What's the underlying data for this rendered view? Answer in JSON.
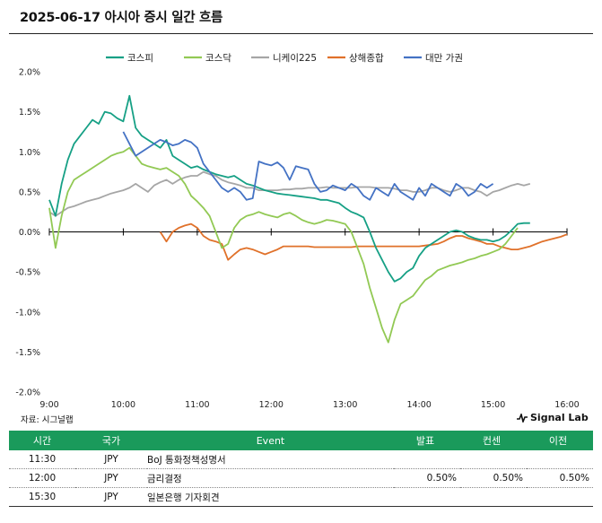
{
  "title": "2025-06-17 아시아 증시 일간 흐름",
  "source": "자료: 시그널랩",
  "brand": "Signal Lab",
  "colors": {
    "kospi": "#16a085",
    "kosdaq": "#92c954",
    "nikkei": "#a6a6a6",
    "shanghai": "#e0712a",
    "taiwan": "#4472c4",
    "header_bg": "#1a9a5b"
  },
  "chart_data": {
    "type": "line",
    "yunit": "%",
    "ylim": [
      -2.0,
      2.0
    ],
    "yticks": [
      "2.0%",
      "1.5%",
      "1.0%",
      "0.5%",
      "0.0%",
      "-0.5%",
      "-1.0%",
      "-1.5%",
      "-2.0%"
    ],
    "xticks": [
      "9:00",
      "10:00",
      "11:00",
      "12:00",
      "13:00",
      "14:00",
      "15:00",
      "16:00"
    ],
    "legend_position": "top",
    "grid": false,
    "series": [
      {
        "name": "코스피",
        "key": "kospi",
        "x": [
          "9:00",
          "9:05",
          "9:10",
          "9:15",
          "9:20",
          "9:25",
          "9:30",
          "9:35",
          "9:40",
          "9:45",
          "9:50",
          "9:55",
          "10:00",
          "10:05",
          "10:10",
          "10:15",
          "10:20",
          "10:25",
          "10:30",
          "10:35",
          "10:40",
          "10:45",
          "10:50",
          "10:55",
          "11:00",
          "11:05",
          "11:10",
          "11:15",
          "11:20",
          "11:25",
          "11:30",
          "11:35",
          "11:40",
          "11:45",
          "11:50",
          "11:55",
          "12:00",
          "12:05",
          "12:10",
          "12:15",
          "12:20",
          "12:25",
          "12:30",
          "12:35",
          "12:40",
          "12:45",
          "12:50",
          "12:55",
          "13:00",
          "13:05",
          "13:10",
          "13:15",
          "13:20",
          "13:25",
          "13:30",
          "13:35",
          "13:40",
          "13:45",
          "13:50",
          "13:55",
          "14:00",
          "14:05",
          "14:10",
          "14:15",
          "14:20",
          "14:25",
          "14:30",
          "14:35",
          "14:40",
          "14:45",
          "14:50",
          "14:55",
          "15:00",
          "15:05",
          "15:10",
          "15:15",
          "15:20",
          "15:25",
          "15:30"
        ],
        "y": [
          0.4,
          0.2,
          0.6,
          0.9,
          1.1,
          1.2,
          1.3,
          1.4,
          1.35,
          1.5,
          1.48,
          1.42,
          1.38,
          1.7,
          1.3,
          1.2,
          1.15,
          1.1,
          1.05,
          1.15,
          0.95,
          0.9,
          0.85,
          0.8,
          0.82,
          0.78,
          0.75,
          0.72,
          0.7,
          0.68,
          0.7,
          0.65,
          0.6,
          0.58,
          0.55,
          0.52,
          0.5,
          0.48,
          0.47,
          0.46,
          0.45,
          0.44,
          0.43,
          0.42,
          0.4,
          0.4,
          0.38,
          0.36,
          0.3,
          0.25,
          0.22,
          0.18,
          0.0,
          -0.2,
          -0.35,
          -0.5,
          -0.62,
          -0.58,
          -0.5,
          -0.45,
          -0.3,
          -0.2,
          -0.15,
          -0.1,
          -0.05,
          0.0,
          0.02,
          0.0,
          -0.05,
          -0.08,
          -0.1,
          -0.1,
          -0.12,
          -0.1,
          -0.05,
          0.02,
          0.1,
          0.11,
          0.11
        ]
      },
      {
        "name": "코스닥",
        "key": "kosdaq",
        "x": [
          "9:00",
          "9:05",
          "9:10",
          "9:15",
          "9:20",
          "9:25",
          "9:30",
          "9:35",
          "9:40",
          "9:45",
          "9:50",
          "9:55",
          "10:00",
          "10:05",
          "10:10",
          "10:15",
          "10:20",
          "10:25",
          "10:30",
          "10:35",
          "10:40",
          "10:45",
          "10:50",
          "10:55",
          "11:00",
          "11:05",
          "11:10",
          "11:15",
          "11:20",
          "11:25",
          "11:30",
          "11:35",
          "11:40",
          "11:45",
          "11:50",
          "11:55",
          "12:00",
          "12:05",
          "12:10",
          "12:15",
          "12:20",
          "12:25",
          "12:30",
          "12:35",
          "12:40",
          "12:45",
          "12:50",
          "12:55",
          "13:00",
          "13:05",
          "13:10",
          "13:15",
          "13:20",
          "13:25",
          "13:30",
          "13:35",
          "13:40",
          "13:45",
          "13:50",
          "13:55",
          "14:00",
          "14:05",
          "14:10",
          "14:15",
          "14:20",
          "14:25",
          "14:30",
          "14:35",
          "14:40",
          "14:45",
          "14:50",
          "14:55",
          "15:00",
          "15:05",
          "15:10",
          "15:15",
          "15:20"
        ],
        "y": [
          0.3,
          -0.2,
          0.2,
          0.5,
          0.65,
          0.7,
          0.75,
          0.8,
          0.85,
          0.9,
          0.95,
          0.98,
          1.0,
          1.05,
          0.95,
          0.85,
          0.82,
          0.8,
          0.78,
          0.8,
          0.75,
          0.7,
          0.6,
          0.45,
          0.38,
          0.3,
          0.2,
          0.0,
          -0.2,
          -0.15,
          0.05,
          0.15,
          0.2,
          0.22,
          0.25,
          0.22,
          0.2,
          0.18,
          0.22,
          0.24,
          0.2,
          0.15,
          0.12,
          0.1,
          0.12,
          0.15,
          0.14,
          0.12,
          0.1,
          0.0,
          -0.2,
          -0.4,
          -0.7,
          -0.95,
          -1.2,
          -1.38,
          -1.1,
          -0.9,
          -0.85,
          -0.8,
          -0.7,
          -0.6,
          -0.55,
          -0.48,
          -0.45,
          -0.42,
          -0.4,
          -0.38,
          -0.35,
          -0.33,
          -0.3,
          -0.28,
          -0.25,
          -0.22,
          -0.15,
          -0.05,
          0.05
        ]
      },
      {
        "name": "니케이225",
        "key": "nikkei",
        "x": [
          "9:00",
          "9:05",
          "9:10",
          "9:15",
          "9:20",
          "9:25",
          "9:30",
          "9:35",
          "9:40",
          "9:45",
          "9:50",
          "9:55",
          "10:00",
          "10:05",
          "10:10",
          "10:15",
          "10:20",
          "10:25",
          "10:30",
          "10:35",
          "10:40",
          "10:45",
          "10:50",
          "10:55",
          "11:00",
          "11:05",
          "11:10",
          "11:15",
          "11:20",
          "11:25",
          "11:30",
          "11:35",
          "11:40",
          "11:45",
          "11:50",
          "11:55",
          "12:00",
          "12:05",
          "12:10",
          "12:15",
          "12:20",
          "12:25",
          "12:30",
          "12:35",
          "12:40",
          "12:45",
          "12:50",
          "12:55",
          "13:00",
          "13:05",
          "13:10",
          "13:15",
          "13:20",
          "13:25",
          "13:30",
          "13:35",
          "13:40",
          "13:45",
          "13:50",
          "13:55",
          "14:00",
          "14:05",
          "14:10",
          "14:15",
          "14:20",
          "14:25",
          "14:30",
          "14:35",
          "14:40",
          "14:45",
          "14:50",
          "14:55",
          "15:00",
          "15:05",
          "15:10",
          "15:15",
          "15:20",
          "15:25",
          "15:30"
        ],
        "y": [
          0.25,
          0.2,
          0.25,
          0.3,
          0.32,
          0.35,
          0.38,
          0.4,
          0.42,
          0.45,
          0.48,
          0.5,
          0.52,
          0.55,
          0.6,
          0.55,
          0.5,
          0.58,
          0.62,
          0.65,
          0.6,
          0.65,
          0.68,
          0.7,
          0.7,
          0.75,
          0.72,
          0.7,
          0.65,
          0.62,
          0.6,
          0.58,
          0.55,
          0.55,
          0.52,
          0.52,
          0.52,
          0.52,
          0.53,
          0.53,
          0.54,
          0.54,
          0.55,
          0.55,
          0.55,
          0.56,
          0.55,
          0.55,
          0.55,
          0.55,
          0.56,
          0.56,
          0.56,
          0.55,
          0.55,
          0.55,
          0.54,
          0.52,
          0.52,
          0.5,
          0.5,
          0.52,
          0.55,
          0.55,
          0.52,
          0.5,
          0.52,
          0.55,
          0.55,
          0.52,
          0.5,
          0.45,
          0.5,
          0.52,
          0.55,
          0.58,
          0.6,
          0.58,
          0.6
        ]
      },
      {
        "name": "상해종합",
        "key": "shanghai",
        "x": [
          "10:30",
          "10:35",
          "10:40",
          "10:45",
          "10:50",
          "10:55",
          "11:00",
          "11:05",
          "11:10",
          "11:15",
          "11:20",
          "11:25",
          "11:30",
          "11:35",
          "11:40",
          "11:45",
          "11:50",
          "11:55",
          "12:00",
          "12:05",
          "12:10",
          "12:15",
          "12:20",
          "12:25",
          "12:30",
          "12:35",
          "12:40",
          "12:45",
          "12:50",
          "12:55",
          "13:00",
          "13:05",
          "13:10",
          "13:15",
          "13:20",
          "13:25",
          "13:30",
          "13:35",
          "13:40",
          "13:45",
          "13:50",
          "13:55",
          "14:00",
          "14:05",
          "14:10",
          "14:15",
          "14:20",
          "14:25",
          "14:30",
          "14:35",
          "14:40",
          "14:45",
          "14:50",
          "14:55",
          "15:00",
          "15:05",
          "15:10",
          "15:15",
          "15:20",
          "15:25",
          "15:30",
          "15:35",
          "15:40",
          "15:45",
          "15:50",
          "15:55",
          "16:00"
        ],
        "y": [
          0.0,
          -0.12,
          0.0,
          0.05,
          0.08,
          0.1,
          0.05,
          -0.05,
          -0.1,
          -0.12,
          -0.15,
          -0.35,
          -0.28,
          -0.22,
          -0.2,
          -0.22,
          -0.25,
          -0.28,
          -0.25,
          -0.22,
          -0.18,
          -0.18,
          -0.18,
          -0.18,
          -0.18,
          -0.19,
          -0.19,
          -0.19,
          -0.19,
          -0.19,
          -0.19,
          -0.19,
          -0.18,
          -0.18,
          -0.18,
          -0.18,
          -0.18,
          -0.18,
          -0.18,
          -0.18,
          -0.18,
          -0.18,
          -0.18,
          -0.17,
          -0.16,
          -0.15,
          -0.12,
          -0.08,
          -0.05,
          -0.05,
          -0.08,
          -0.1,
          -0.12,
          -0.15,
          -0.15,
          -0.18,
          -0.2,
          -0.22,
          -0.22,
          -0.2,
          -0.18,
          -0.15,
          -0.12,
          -0.1,
          -0.08,
          -0.06,
          -0.03
        ]
      },
      {
        "name": "대만 가권",
        "key": "taiwan",
        "x": [
          "10:00",
          "10:05",
          "10:10",
          "10:15",
          "10:20",
          "10:25",
          "10:30",
          "10:35",
          "10:40",
          "10:45",
          "10:50",
          "10:55",
          "11:00",
          "11:05",
          "11:10",
          "11:15",
          "11:20",
          "11:25",
          "11:30",
          "11:35",
          "11:40",
          "11:45",
          "11:50",
          "11:55",
          "12:00",
          "12:05",
          "12:10",
          "12:15",
          "12:20",
          "12:25",
          "12:30",
          "12:35",
          "12:40",
          "12:45",
          "12:50",
          "12:55",
          "13:00",
          "13:05",
          "13:10",
          "13:15",
          "13:20",
          "13:25",
          "13:30",
          "13:35",
          "13:40",
          "13:45",
          "13:50",
          "13:55",
          "14:00",
          "14:05",
          "14:10",
          "14:15",
          "14:20",
          "14:25",
          "14:30",
          "14:35",
          "14:40",
          "14:45",
          "14:50",
          "14:55",
          "15:00"
        ],
        "y": [
          1.25,
          1.1,
          0.95,
          1.0,
          1.05,
          1.1,
          1.15,
          1.12,
          1.08,
          1.1,
          1.15,
          1.12,
          1.05,
          0.85,
          0.75,
          0.65,
          0.55,
          0.5,
          0.55,
          0.5,
          0.4,
          0.42,
          0.88,
          0.85,
          0.83,
          0.87,
          0.8,
          0.65,
          0.82,
          0.8,
          0.78,
          0.6,
          0.5,
          0.52,
          0.58,
          0.55,
          0.52,
          0.6,
          0.55,
          0.45,
          0.4,
          0.55,
          0.5,
          0.45,
          0.6,
          0.5,
          0.45,
          0.4,
          0.55,
          0.45,
          0.6,
          0.55,
          0.5,
          0.45,
          0.6,
          0.55,
          0.45,
          0.5,
          0.6,
          0.55,
          0.6
        ]
      }
    ]
  },
  "table": {
    "headers": [
      "시간",
      "국가",
      "Event",
      "발표",
      "컨센",
      "이전"
    ],
    "rows": [
      [
        "11:30",
        "JPY",
        "BoJ 통화정책성명서",
        "",
        "",
        ""
      ],
      [
        "12:00",
        "JPY",
        "금리결정",
        "0.50%",
        "0.50%",
        "0.50%"
      ],
      [
        "15:30",
        "JPY",
        "일본은행 기자회견",
        "",
        "",
        ""
      ]
    ]
  }
}
